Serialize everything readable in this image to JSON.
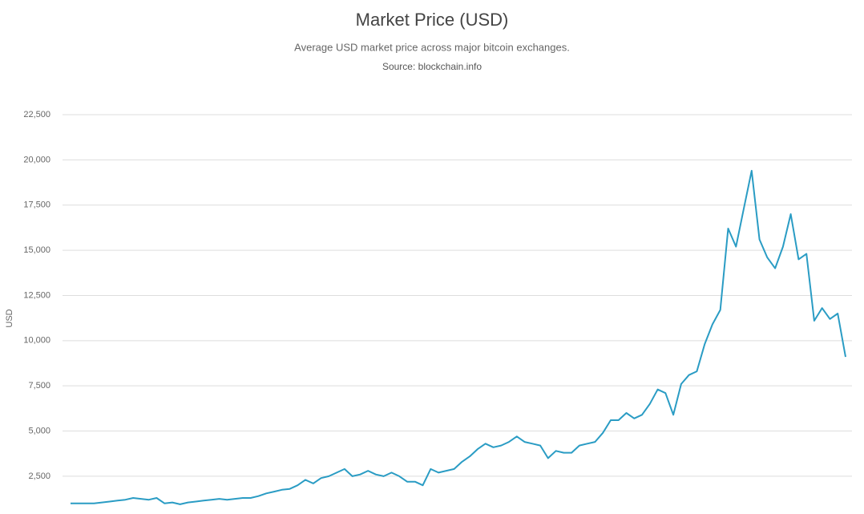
{
  "chart_data": {
    "type": "line",
    "title": "Market Price (USD)",
    "subtitle": "Average USD market price across major bitcoin exchanges.",
    "source": "Source: blockchain.info",
    "y_label": "USD",
    "ylim": [
      500,
      22500
    ],
    "yticks": [
      {
        "value": 2500,
        "label": "2,500"
      },
      {
        "value": 5000,
        "label": "5,000"
      },
      {
        "value": 7500,
        "label": "7,500"
      },
      {
        "value": 10000,
        "label": "10,000"
      },
      {
        "value": 12500,
        "label": "12,500"
      },
      {
        "value": 15000,
        "label": "15,000"
      },
      {
        "value": 17500,
        "label": "17,500"
      },
      {
        "value": 20000,
        "label": "20,000"
      },
      {
        "value": 22500,
        "label": "22,500"
      }
    ],
    "grid": true,
    "color": "#2a9cc4",
    "values": [
      1000,
      1000,
      1000,
      1000,
      1050,
      1100,
      1150,
      1200,
      1300,
      1250,
      1200,
      1300,
      1000,
      1050,
      950,
      1050,
      1100,
      1150,
      1200,
      1250,
      1200,
      1250,
      1300,
      1300,
      1400,
      1550,
      1650,
      1750,
      1800,
      2000,
      2300,
      2100,
      2400,
      2500,
      2700,
      2900,
      2500,
      2600,
      2800,
      2600,
      2500,
      2700,
      2500,
      2200,
      2200,
      2000,
      2900,
      2700,
      2800,
      2900,
      3300,
      3600,
      4000,
      4300,
      4100,
      4200,
      4400,
      4700,
      4400,
      4300,
      4200,
      3500,
      3900,
      3800,
      3800,
      4200,
      4300,
      4400,
      4900,
      5600,
      5600,
      6000,
      5700,
      5900,
      6500,
      7300,
      7100,
      5900,
      7600,
      8100,
      8300,
      9800,
      10900,
      11700,
      16200,
      15200,
      17300,
      19400,
      15600,
      14600,
      14000,
      15200,
      17000,
      14500,
      14800,
      11100,
      11800,
      11200,
      11500,
      9100
    ]
  }
}
